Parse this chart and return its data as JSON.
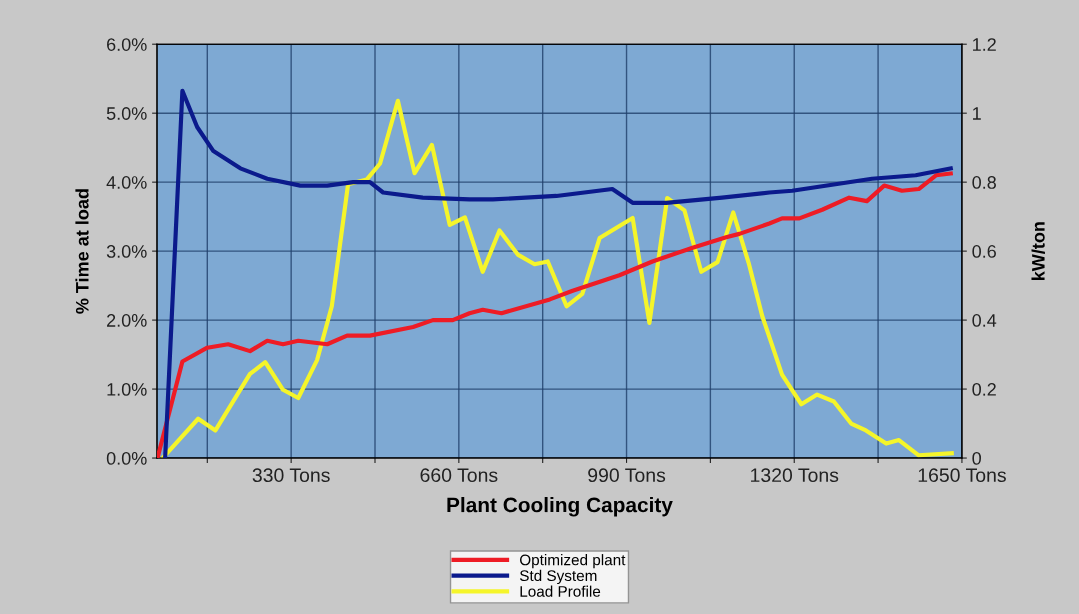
{
  "chart_data": {
    "type": "line",
    "xlabel": "Plant Cooling Capacity",
    "ylabel": "% Time at load",
    "y2label": "kW/ton",
    "xlim": [
      66,
      1650
    ],
    "xticks": [
      {
        "value": 165,
        "label": null
      },
      {
        "value": 330,
        "label": "330 Tons"
      },
      {
        "value": 495,
        "label": null
      },
      {
        "value": 660,
        "label": "660 Tons"
      },
      {
        "value": 825,
        "label": null
      },
      {
        "value": 990,
        "label": "990 Tons"
      },
      {
        "value": 1155,
        "label": null
      },
      {
        "value": 1320,
        "label": "1320 Tons"
      },
      {
        "value": 1485,
        "label": null
      },
      {
        "value": 1650,
        "label": "1650 Tons"
      }
    ],
    "ylim": [
      0,
      6
    ],
    "yticks": [
      {
        "value": 0,
        "label": "0.0%"
      },
      {
        "value": 1,
        "label": "1.0%"
      },
      {
        "value": 2,
        "label": "2.0%"
      },
      {
        "value": 3,
        "label": "3.0%"
      },
      {
        "value": 4,
        "label": "4.0%"
      },
      {
        "value": 5,
        "label": "5.0%"
      },
      {
        "value": 6,
        "label": "6.0%"
      }
    ],
    "y2lim": [
      0,
      1.2
    ],
    "y2ticks": [
      0,
      0.2,
      0.4,
      0.6,
      0.8,
      1,
      1.2
    ],
    "grid": true,
    "legend": "bottom",
    "marker": "none",
    "line_style": "solid",
    "series": [
      {
        "name": "Optimized plant",
        "color": "#ee1c25",
        "axis": "y2",
        "x": [
          67,
          116,
          165,
          206,
          249,
          283,
          314,
          344,
          401,
          440,
          485,
          570,
          609,
          648,
          681,
          707,
          744,
          839,
          884,
          976,
          1041,
          1120,
          1186,
          1212,
          1271,
          1296,
          1330,
          1375,
          1428,
          1463,
          1497,
          1532,
          1565,
          1599,
          1628
        ],
        "values": [
          0,
          0.28,
          0.32,
          0.33,
          0.31,
          0.34,
          0.33,
          0.34,
          0.33,
          0.355,
          0.355,
          0.38,
          0.4,
          0.4,
          0.42,
          0.43,
          0.42,
          0.46,
          0.485,
          0.53,
          0.57,
          0.61,
          0.64,
          0.65,
          0.68,
          0.695,
          0.695,
          0.72,
          0.755,
          0.745,
          0.79,
          0.775,
          0.78,
          0.82,
          0.825
        ]
      },
      {
        "name": "Std System",
        "color": "#0b1a8c",
        "axis": "y2",
        "x": [
          82,
          116,
          145,
          177,
          230,
          283,
          348,
          401,
          452,
          485,
          511,
          589,
          681,
          727,
          852,
          962,
          1002,
          1068,
          1178,
          1271,
          1316,
          1473,
          1559,
          1628
        ],
        "values": [
          0,
          1.065,
          0.96,
          0.89,
          0.84,
          0.81,
          0.79,
          0.79,
          0.8,
          0.8,
          0.77,
          0.755,
          0.75,
          0.75,
          0.76,
          0.78,
          0.74,
          0.74,
          0.755,
          0.77,
          0.775,
          0.81,
          0.82,
          0.84
        ]
      },
      {
        "name": "Load Profile",
        "color": "#f5f52a",
        "axis": "y",
        "x": [
          77,
          147,
          181,
          249,
          279,
          314,
          344,
          381,
          410,
          442,
          479,
          505,
          540,
          573,
          607,
          642,
          672,
          707,
          740,
          776,
          809,
          835,
          872,
          903,
          937,
          1002,
          1035,
          1070,
          1104,
          1137,
          1169,
          1200,
          1231,
          1257,
          1296,
          1334,
          1365,
          1398,
          1432,
          1461,
          1501,
          1526,
          1565,
          1630
        ],
        "values": [
          0,
          0.57,
          0.4,
          1.22,
          1.39,
          0.99,
          0.87,
          1.42,
          2.2,
          3.97,
          4.04,
          4.27,
          5.18,
          4.13,
          4.54,
          3.38,
          3.49,
          2.7,
          3.3,
          2.95,
          2.81,
          2.85,
          2.2,
          2.38,
          3.19,
          3.48,
          1.96,
          3.77,
          3.59,
          2.7,
          2.84,
          3.56,
          2.81,
          2.06,
          1.21,
          0.78,
          0.92,
          0.82,
          0.5,
          0.4,
          0.21,
          0.26,
          0.04,
          0.07
        ]
      }
    ]
  }
}
